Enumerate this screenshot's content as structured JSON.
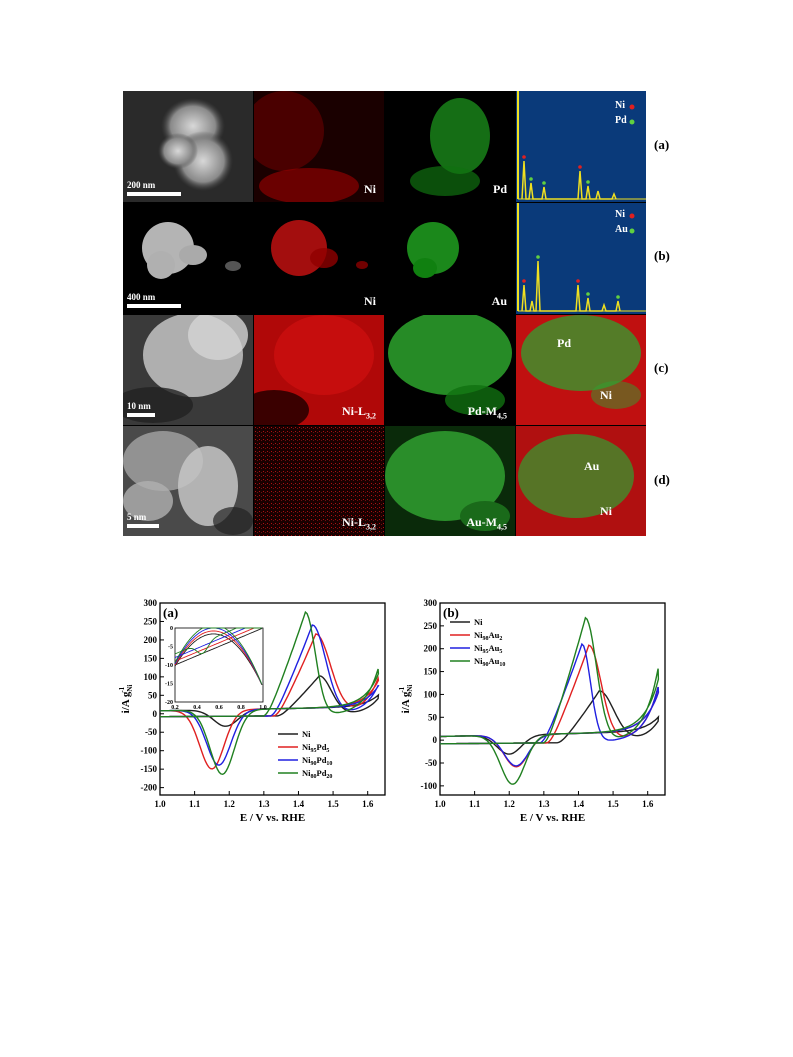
{
  "figure1": {
    "rows": [
      {
        "label": "(a)",
        "scalebar": "200 nm",
        "map1": "Ni",
        "map2": "Pd",
        "eds_legend": [
          {
            "name": "Ni",
            "color": "#e02020"
          },
          {
            "name": "Pd",
            "color": "#60d040"
          }
        ]
      },
      {
        "label": "(b)",
        "scalebar": "400 nm",
        "map1": "Ni",
        "map2": "Au",
        "eds_legend": [
          {
            "name": "Ni",
            "color": "#e02020"
          },
          {
            "name": "Au",
            "color": "#60d040"
          }
        ]
      },
      {
        "label": "(c)",
        "scalebar": "10 nm",
        "map1_main": "Ni-L",
        "map1_sub": "3,2",
        "map2_main": "Pd-M",
        "map2_sub": "4,5",
        "overlay_labels": [
          "Pd",
          "Ni"
        ]
      },
      {
        "label": "(d)",
        "scalebar": "5 nm",
        "map1_main": "Ni-L",
        "map1_sub": "3,2",
        "map2_main": "Au-M",
        "map2_sub": "4,5",
        "overlay_labels": [
          "Au",
          "Ni"
        ]
      }
    ],
    "colors": {
      "ni": "#e01010",
      "pd": "#30c030",
      "eds_bg": "#0a3a7a",
      "eds_peak": "#f0e020"
    }
  },
  "chart_data": [
    {
      "type": "line",
      "panel_label": "(a)",
      "xlabel": "E / V vs. RHE",
      "ylabel": "i/A g",
      "ylabel_sub": "Ni",
      "ylabel_sup": "-1",
      "xlim": [
        1.0,
        1.65
      ],
      "ylim": [
        -220,
        300
      ],
      "xticks": [
        "1.0",
        "1.1",
        "1.2",
        "1.3",
        "1.4",
        "1.5",
        "1.6"
      ],
      "yticks": [
        "300",
        "250",
        "200",
        "150",
        "100",
        "50",
        "0",
        "-50",
        "-100",
        "-150",
        "-200"
      ],
      "legend_position": "bottom-right",
      "series": [
        {
          "name": "Ni",
          "color": "#202020",
          "anodic_peak": [
            1.46,
            117
          ],
          "cathodic_peak": [
            1.19,
            -45
          ]
        },
        {
          "name": "Ni",
          "name_sub": "95",
          "name_tail": "Pd",
          "name_tail_sub": "5",
          "color": "#e02020",
          "anodic_peak": [
            1.45,
            230
          ],
          "cathodic_peak": [
            1.15,
            -160
          ]
        },
        {
          "name": "Ni",
          "name_sub": "90",
          "name_tail": "Pd",
          "name_tail_sub": "10",
          "color": "#2020e0",
          "anodic_peak": [
            1.44,
            255
          ],
          "cathodic_peak": [
            1.17,
            -150
          ]
        },
        {
          "name": "Ni",
          "name_sub": "80",
          "name_tail": "Pd",
          "name_tail_sub": "20",
          "color": "#208020",
          "anodic_peak": [
            1.42,
            290
          ],
          "cathodic_peak": [
            1.18,
            -175
          ]
        }
      ],
      "inset": {
        "xlim": [
          0.2,
          1.0
        ],
        "ylim": [
          -20,
          0
        ],
        "xticks": [
          "0.2",
          "0.4",
          "0.6",
          "0.8",
          "1.0"
        ],
        "yticks": [
          "0",
          "-5",
          "-10",
          "-15",
          "-20"
        ]
      }
    },
    {
      "type": "line",
      "panel_label": "(b)",
      "xlabel": "E / V vs. RHE",
      "ylabel": "i/A g",
      "ylabel_sub": "Ni",
      "ylabel_sup": "-1",
      "xlim": [
        1.0,
        1.65
      ],
      "ylim": [
        -120,
        300
      ],
      "xticks": [
        "1.0",
        "1.1",
        "1.2",
        "1.3",
        "1.4",
        "1.5",
        "1.6"
      ],
      "yticks": [
        "300",
        "250",
        "200",
        "150",
        "100",
        "50",
        "0",
        "-50",
        "-100"
      ],
      "legend_position": "top-left",
      "series": [
        {
          "name": "Ni",
          "color": "#202020",
          "anodic_peak": [
            1.46,
            122
          ],
          "cathodic_peak": [
            1.2,
            -42
          ]
        },
        {
          "name": "Ni",
          "name_sub": "98",
          "name_tail": "Au",
          "name_tail_sub": "2",
          "color": "#e02020",
          "anodic_peak": [
            1.43,
            222
          ],
          "cathodic_peak": [
            1.22,
            -70
          ]
        },
        {
          "name": "Ni",
          "name_sub": "95",
          "name_tail": "Au",
          "name_tail_sub": "5",
          "color": "#2020e0",
          "anodic_peak": [
            1.41,
            225
          ],
          "cathodic_peak": [
            1.22,
            -68
          ]
        },
        {
          "name": "Ni",
          "name_sub": "90",
          "name_tail": "Au",
          "name_tail_sub": "10",
          "color": "#208020",
          "anodic_peak": [
            1.42,
            282
          ],
          "cathodic_peak": [
            1.21,
            -108
          ]
        }
      ]
    }
  ]
}
